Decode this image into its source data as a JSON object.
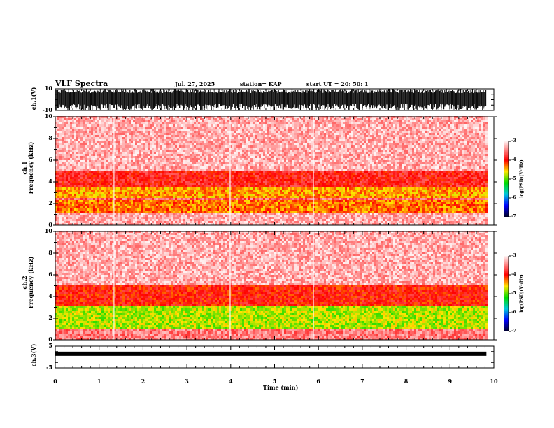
{
  "header": {
    "title": "VLF Spectra",
    "date": "Jul. 27, 2025",
    "station": "station= KAP",
    "start": "start  UT  =   20: 50: 1"
  },
  "chart_data": [
    {
      "type": "line",
      "name": "ch1-waveform",
      "ylabel": "ch.1(V)",
      "ylim": [
        -10,
        10
      ],
      "yticks": [
        "10",
        "-10"
      ],
      "xlim": [
        0,
        10
      ],
      "data_extent_min": 9.83,
      "description_values": "saturated waveform spanning roughly -10 to 10 V"
    },
    {
      "type": "heatmap",
      "name": "ch1-spectrogram",
      "ylabel_line1": "ch.1",
      "ylabel_line2": "Frequency  (kHz)",
      "ylim": [
        0,
        10
      ],
      "yticks": [
        "0",
        "2",
        "4",
        "6",
        "8",
        "10"
      ],
      "xlim": [
        0,
        10
      ],
      "data_extent_min": 9.83,
      "colorbar": {
        "label": "log(PSD)(V²/Hz)",
        "range": [
          -7,
          -3
        ],
        "ticks": [
          "-3",
          "-4",
          "-5",
          "-6",
          "-7"
        ]
      },
      "bands": [
        {
          "from_khz": 0,
          "to_khz": 1.0,
          "level": -3.3
        },
        {
          "from_khz": 1.0,
          "to_khz": 2.2,
          "level": -4.3
        },
        {
          "from_khz": 2.2,
          "to_khz": 2.4,
          "level": -3.6
        },
        {
          "from_khz": 2.4,
          "to_khz": 3.4,
          "level": -4.4
        },
        {
          "from_khz": 3.4,
          "to_khz": 5.0,
          "level": -3.9
        },
        {
          "from_khz": 5.0,
          "to_khz": 10.0,
          "level": -3.3
        }
      ]
    },
    {
      "type": "heatmap",
      "name": "ch2-spectrogram",
      "ylabel_line1": "ch.2",
      "ylabel_line2": "Frequency  (kHz)",
      "ylim": [
        0,
        10
      ],
      "yticks": [
        "0",
        "2",
        "4",
        "6",
        "8",
        "10"
      ],
      "xlim": [
        0,
        10
      ],
      "data_extent_min": 9.83,
      "colorbar": {
        "label": "log(PSD)(V²/Hz)",
        "range": [
          -7,
          -3
        ],
        "ticks": [
          "-3",
          "-4",
          "-5",
          "-6",
          "-7"
        ]
      },
      "bands": [
        {
          "from_khz": 0,
          "to_khz": 0.8,
          "level": -3.5
        },
        {
          "from_khz": 0.8,
          "to_khz": 3.0,
          "level": -4.8
        },
        {
          "from_khz": 3.0,
          "to_khz": 5.0,
          "level": -4.0
        },
        {
          "from_khz": 5.0,
          "to_khz": 10.0,
          "level": -3.3
        }
      ]
    },
    {
      "type": "line",
      "name": "ch3-waveform",
      "ylabel": "ch.3(V)",
      "ylim": [
        -5,
        5
      ],
      "yticks": [
        "5",
        "-5"
      ],
      "xlim": [
        0,
        10
      ],
      "data_extent_min": 9.83,
      "level_v": 1.5
    }
  ],
  "xaxis": {
    "label": "Time  (min)",
    "ticks": [
      "0",
      "1",
      "2",
      "3",
      "4",
      "5",
      "6",
      "7",
      "8",
      "9",
      "10"
    ]
  },
  "colors": {
    "frame": "#000000",
    "background": "#ffffff"
  }
}
